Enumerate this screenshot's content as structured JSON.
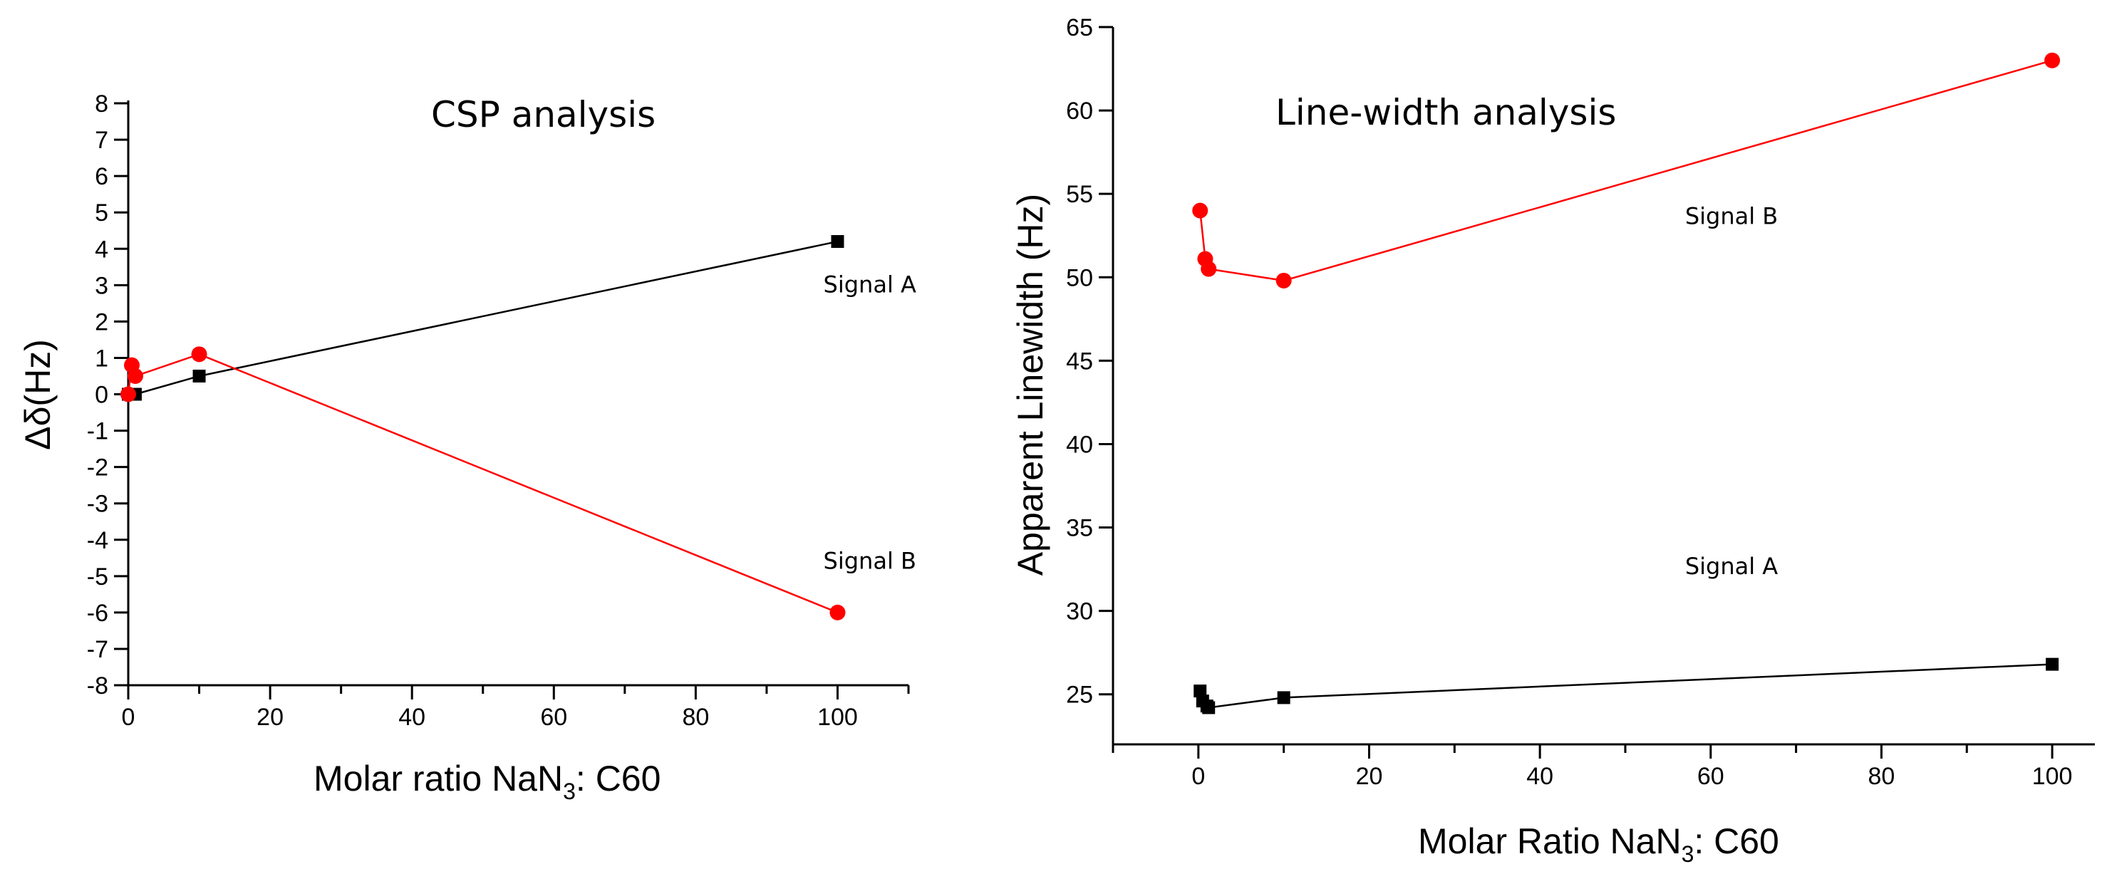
{
  "chart_data": [
    {
      "type": "line",
      "title": "CSP   analysis",
      "xlabel": "Molar ratio NaN",
      "xlabel_sub": "3",
      "xlabel_suffix": ": C60",
      "ylabel": "Δδ(Hz)",
      "xlim": [
        0,
        110
      ],
      "ylim": [
        -8,
        8
      ],
      "xticks": [
        0,
        20,
        40,
        60,
        80,
        100
      ],
      "yticks": [
        8,
        7,
        6,
        5,
        4,
        3,
        2,
        1,
        0,
        -1,
        -2,
        -3,
        -4,
        -5,
        -6,
        -7,
        -8
      ],
      "series": [
        {
          "name": "Signal A",
          "color": "#000000",
          "marker": "square",
          "x": [
            0,
            1,
            10,
            100
          ],
          "y": [
            0,
            0,
            0.5,
            4.2
          ]
        },
        {
          "name": "Signal B",
          "color": "#ff0000",
          "marker": "circle",
          "x": [
            0,
            0.5,
            1,
            10,
            100
          ],
          "y": [
            0,
            0.8,
            0.5,
            1.1,
            -6
          ]
        }
      ],
      "annotations": [
        {
          "text": "Signal A",
          "x": 98,
          "y": 2.8
        },
        {
          "text": "Signal B",
          "x": 98,
          "y": -4.8
        }
      ]
    },
    {
      "type": "line",
      "title": "Line-width   analysis",
      "xlabel": "Molar Ratio NaN",
      "xlabel_sub": "3",
      "xlabel_suffix": ": C60",
      "ylabel": "Apparent Linewidth (Hz)",
      "xlim": [
        -10,
        105
      ],
      "ylim": [
        22,
        65
      ],
      "xticks": [
        0,
        20,
        40,
        60,
        80,
        100
      ],
      "yticks": [
        25,
        30,
        35,
        40,
        45,
        50,
        55,
        60,
        65
      ],
      "series": [
        {
          "name": "Signal A",
          "color": "#000000",
          "marker": "square",
          "x": [
            0.2,
            0.5,
            1,
            1.2,
            10,
            100
          ],
          "y": [
            25.2,
            24.6,
            24.3,
            24.2,
            24.8,
            26.8
          ]
        },
        {
          "name": "Signal B",
          "color": "#ff0000",
          "marker": "circle",
          "x": [
            0.2,
            0.8,
            1.2,
            10,
            100
          ],
          "y": [
            54,
            51.1,
            50.5,
            49.8,
            63
          ]
        }
      ],
      "annotations": [
        {
          "text": "Signal B",
          "x": 57,
          "y": 53.2
        },
        {
          "text": "Signal A",
          "x": 57,
          "y": 32.2
        }
      ]
    }
  ]
}
